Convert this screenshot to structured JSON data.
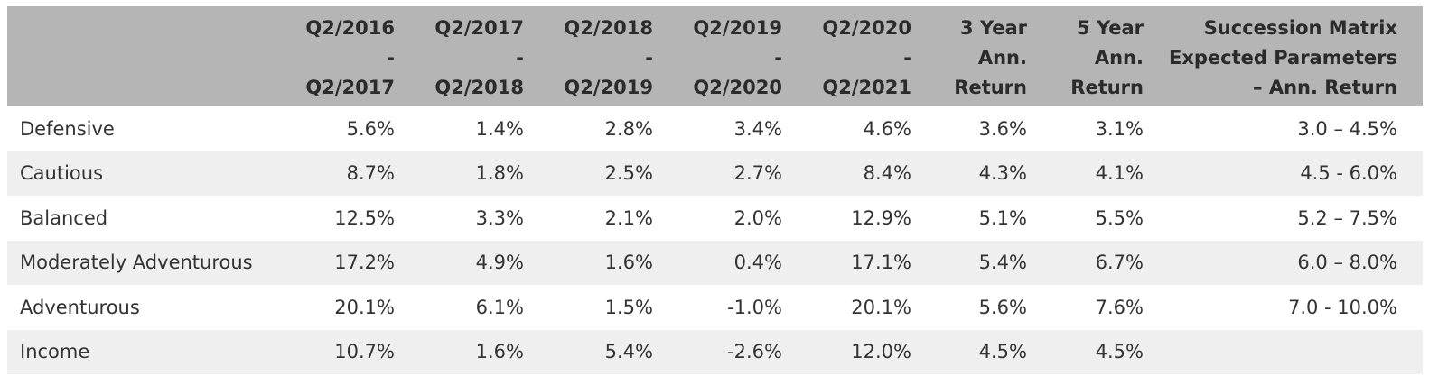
{
  "table": {
    "headers": [
      {
        "lines": [
          "Q2/2016",
          "-",
          "Q2/2017"
        ]
      },
      {
        "lines": [
          "Q2/2017",
          "-",
          "Q2/2018"
        ]
      },
      {
        "lines": [
          "Q2/2018",
          "-",
          "Q2/2019"
        ]
      },
      {
        "lines": [
          "Q2/2019",
          "-",
          "Q2/2020"
        ]
      },
      {
        "lines": [
          "Q2/2020",
          "-",
          "Q2/2021"
        ]
      },
      {
        "lines": [
          "3 Year",
          "Ann.",
          "Return"
        ]
      },
      {
        "lines": [
          "5 Year",
          "Ann.",
          "Return"
        ]
      },
      {
        "lines": [
          "Succession Matrix",
          "Expected Parameters",
          "– Ann. Return"
        ]
      }
    ],
    "rows": [
      {
        "label": "Defensive",
        "cells": [
          "5.6%",
          "1.4%",
          "2.8%",
          "3.4%",
          "4.6%",
          "3.6%",
          "3.1%",
          "3.0 – 4.5%"
        ]
      },
      {
        "label": "Cautious",
        "cells": [
          "8.7%",
          "1.8%",
          "2.5%",
          "2.7%",
          "8.4%",
          "4.3%",
          "4.1%",
          "4.5 - 6.0%"
        ]
      },
      {
        "label": "Balanced",
        "cells": [
          "12.5%",
          "3.3%",
          "2.1%",
          "2.0%",
          "12.9%",
          "5.1%",
          "5.5%",
          "5.2 – 7.5%"
        ]
      },
      {
        "label": "Moderately Adventurous",
        "cells": [
          "17.2%",
          "4.9%",
          "1.6%",
          "0.4%",
          "17.1%",
          "5.4%",
          "6.7%",
          "6.0 – 8.0%"
        ]
      },
      {
        "label": "Adventurous",
        "cells": [
          "20.1%",
          "6.1%",
          "1.5%",
          "-1.0%",
          "20.1%",
          "5.6%",
          "7.6%",
          "7.0 - 10.0%"
        ]
      },
      {
        "label": "Income",
        "cells": [
          "10.7%",
          "1.6%",
          "5.4%",
          "-2.6%",
          "12.0%",
          "4.5%",
          "4.5%",
          ""
        ]
      }
    ]
  }
}
